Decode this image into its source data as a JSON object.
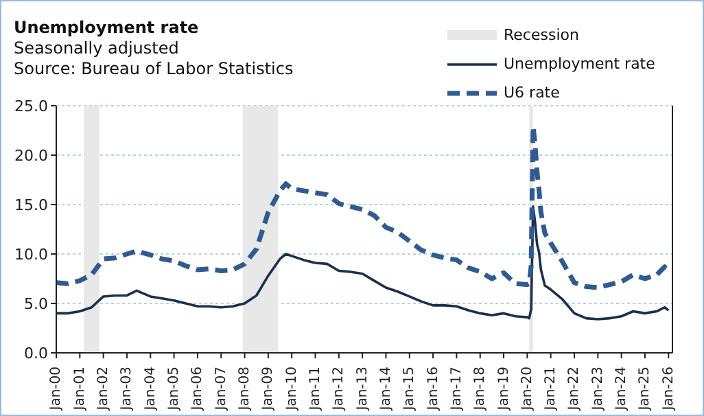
{
  "chart_data": {
    "type": "line",
    "title": "Unemployment rate",
    "subtitle": "Seasonally adjusted",
    "annotations": [
      "Source: Bureau of Labor Statistics"
    ],
    "x": [
      "2000-01",
      "2000-07",
      "2001-01",
      "2001-07",
      "2002-01",
      "2002-07",
      "2003-01",
      "2003-06",
      "2004-01",
      "2004-07",
      "2005-01",
      "2005-07",
      "2006-01",
      "2006-07",
      "2007-01",
      "2007-07",
      "2008-01",
      "2008-07",
      "2009-01",
      "2009-07",
      "2009-10",
      "2010-01",
      "2010-07",
      "2011-01",
      "2011-07",
      "2012-01",
      "2012-07",
      "2013-01",
      "2013-07",
      "2014-01",
      "2014-07",
      "2015-01",
      "2015-07",
      "2016-01",
      "2016-07",
      "2017-01",
      "2017-07",
      "2018-01",
      "2018-07",
      "2019-01",
      "2019-07",
      "2020-01",
      "2020-02",
      "2020-03",
      "2020-04",
      "2020-05",
      "2020-06",
      "2020-07",
      "2020-08",
      "2020-10",
      "2021-01",
      "2021-07",
      "2022-01",
      "2022-07",
      "2023-01",
      "2023-07",
      "2024-01",
      "2024-07",
      "2025-01",
      "2025-07",
      "2025-11",
      "2026-01"
    ],
    "series": [
      {
        "name": "Unemployment rate",
        "color": "#1b2f50",
        "line_style": "solid",
        "values": [
          4.0,
          4.0,
          4.2,
          4.6,
          5.7,
          5.8,
          5.8,
          6.3,
          5.7,
          5.5,
          5.3,
          5.0,
          4.7,
          4.7,
          4.6,
          4.7,
          5.0,
          5.8,
          7.8,
          9.5,
          10.0,
          9.8,
          9.4,
          9.1,
          9.0,
          8.3,
          8.2,
          8.0,
          7.3,
          6.6,
          6.2,
          5.7,
          5.2,
          4.8,
          4.8,
          4.7,
          4.3,
          4.0,
          3.8,
          4.0,
          3.7,
          3.6,
          3.5,
          4.4,
          14.8,
          13.2,
          11.0,
          10.2,
          8.4,
          6.8,
          6.4,
          5.4,
          4.0,
          3.5,
          3.4,
          3.5,
          3.7,
          4.2,
          4.0,
          4.2,
          4.6,
          4.3
        ]
      },
      {
        "name": "U6 rate",
        "color": "#2f5b91",
        "line_style": "dashed",
        "values": [
          7.1,
          7.0,
          7.3,
          7.9,
          9.5,
          9.6,
          10.0,
          10.3,
          9.9,
          9.5,
          9.3,
          8.8,
          8.4,
          8.5,
          8.3,
          8.4,
          9.0,
          10.5,
          14.2,
          16.4,
          17.1,
          16.6,
          16.4,
          16.2,
          16.0,
          15.1,
          14.8,
          14.5,
          13.9,
          12.7,
          12.2,
          11.3,
          10.4,
          9.9,
          9.6,
          9.4,
          8.6,
          8.2,
          7.5,
          8.1,
          7.0,
          6.9,
          7.0,
          8.8,
          22.9,
          21.1,
          18.3,
          16.5,
          14.2,
          12.1,
          11.1,
          9.2,
          7.1,
          6.7,
          6.6,
          6.9,
          7.2,
          7.9,
          7.5,
          7.9,
          8.7,
          8.1
        ]
      }
    ],
    "bands": [
      {
        "axis": "x",
        "from": "2001-03",
        "to": "2001-11",
        "label": "Recession",
        "color": "#e8e8e8"
      },
      {
        "axis": "x",
        "from": "2007-12",
        "to": "2009-06",
        "color": "#e8e8e8"
      },
      {
        "axis": "x",
        "from": "2020-02",
        "to": "2020-04",
        "color": "#e8e8e8"
      }
    ],
    "xlim": [
      "2000-01",
      "2026-03"
    ],
    "xticks": [
      {
        "value": "2000-01",
        "label": "Jan-00"
      },
      {
        "value": "2001-01",
        "label": "Jan-01"
      },
      {
        "value": "2002-01",
        "label": "Jan-02"
      },
      {
        "value": "2003-01",
        "label": "Jan-03"
      },
      {
        "value": "2004-01",
        "label": "Jan-04"
      },
      {
        "value": "2005-01",
        "label": "Jan-05"
      },
      {
        "value": "2006-01",
        "label": "Jan-06"
      },
      {
        "value": "2007-01",
        "label": "Jan-07"
      },
      {
        "value": "2008-01",
        "label": "Jan-08"
      },
      {
        "value": "2009-01",
        "label": "Jan-09"
      },
      {
        "value": "2010-01",
        "label": "Jan-10"
      },
      {
        "value": "2011-01",
        "label": "Jan-11"
      },
      {
        "value": "2012-01",
        "label": "Jan-12"
      },
      {
        "value": "2013-01",
        "label": "Jan-13"
      },
      {
        "value": "2014-01",
        "label": "Jan-14"
      },
      {
        "value": "2015-01",
        "label": "Jan-15"
      },
      {
        "value": "2016-01",
        "label": "Jan-16"
      },
      {
        "value": "2017-01",
        "label": "Jan-17"
      },
      {
        "value": "2018-01",
        "label": "Jan-18"
      },
      {
        "value": "2019-01",
        "label": "Jan-19"
      },
      {
        "value": "2020-01",
        "label": "Jan-20"
      },
      {
        "value": "2021-01",
        "label": "Jan-21"
      },
      {
        "value": "2022-01",
        "label": "Jan-22"
      },
      {
        "value": "2023-01",
        "label": "Jan-23"
      },
      {
        "value": "2024-01",
        "label": "Jan-24"
      },
      {
        "value": "2025-01",
        "label": "Jan-25"
      },
      {
        "value": "2026-01",
        "label": "Jan-26"
      }
    ],
    "ylim": [
      0,
      25
    ],
    "yticks": [
      {
        "value": 0,
        "label": "0.0"
      },
      {
        "value": 5,
        "label": "5.0"
      },
      {
        "value": 10,
        "label": "10.0"
      },
      {
        "value": 15,
        "label": "15.0"
      },
      {
        "value": 20,
        "label": "20.0"
      },
      {
        "value": 25,
        "label": "25.0"
      }
    ],
    "grid": "y",
    "legend": "top right",
    "marker": "none"
  }
}
